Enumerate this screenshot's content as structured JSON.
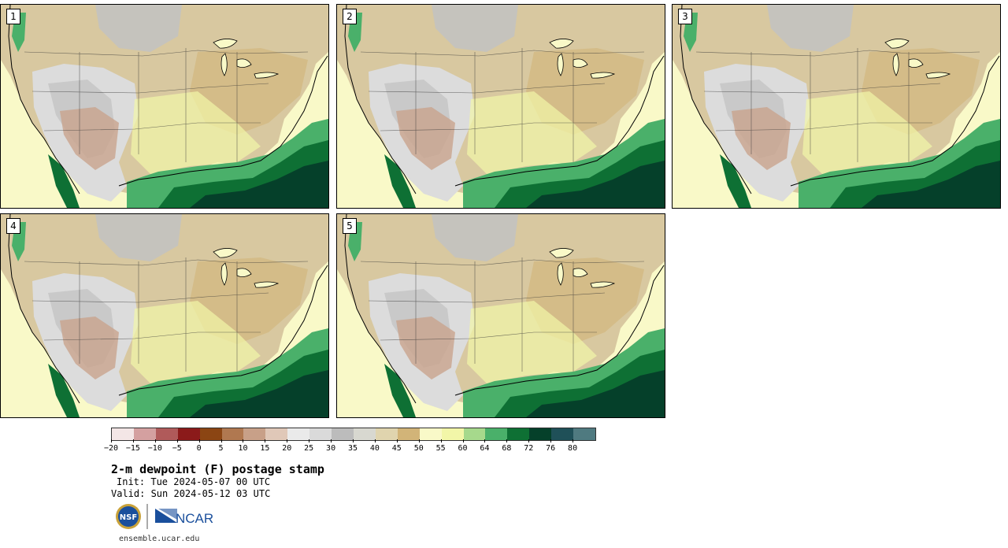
{
  "panels": [
    {
      "label": "1"
    },
    {
      "label": "2"
    },
    {
      "label": "3"
    },
    {
      "label": "4"
    },
    {
      "label": "5"
    }
  ],
  "legend": {
    "colors": [
      "#f3e6e6",
      "#d4a0a0",
      "#b05a5a",
      "#8b1a1a",
      "#8b4513",
      "#b07850",
      "#c8a088",
      "#e0c8b8",
      "#eaeaea",
      "#dadada",
      "#bcbcbc",
      "#d8d8d0",
      "#e0d4ae",
      "#d2b478",
      "#f9f9c8",
      "#f2f6a8",
      "#a6d98c",
      "#4ab06a",
      "#0e7034",
      "#05402a",
      "#1f5058",
      "#4f7a80"
    ],
    "tick_labels": [
      "−20",
      "−15",
      "−10",
      "−5",
      "0",
      "5",
      "10",
      "15",
      "20",
      "25",
      "30",
      "35",
      "40",
      "45",
      "50",
      "55",
      "60",
      "64",
      "68",
      "72",
      "76",
      "80"
    ]
  },
  "title": "2-m dewpoint (F) postage stamp",
  "init": "Init: Tue 2024-05-07 00 UTC",
  "valid": "Valid: Sun 2024-05-12 03 UTC",
  "logos": {
    "nsf_text": "NSF",
    "ncar_text": "NCAR"
  },
  "site": "ensemble.ucar.edu"
}
